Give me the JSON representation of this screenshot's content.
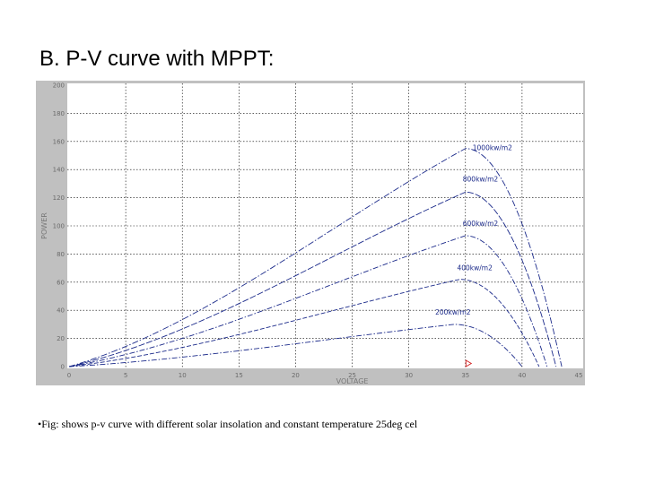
{
  "title": "B.  P-V curve with MPPT:",
  "caption": "•Fig: shows p-v curve with different solar insolation and constant temperature 25deg cel",
  "colors": {
    "curve": "#1b2a8a",
    "marker": "#d22020",
    "frame": "#c0c0c0",
    "grid": "#000000"
  },
  "chart_data": {
    "type": "line",
    "xlabel": "VOLTAGE",
    "ylabel": "POWER",
    "xlim": [
      0,
      45
    ],
    "ylim": [
      0,
      200
    ],
    "grid": true,
    "xticks": [
      0,
      5,
      10,
      15,
      20,
      25,
      30,
      35,
      40,
      45
    ],
    "yticks": [
      0,
      20,
      40,
      60,
      80,
      100,
      120,
      140,
      160,
      180,
      200
    ],
    "series": [
      {
        "name": "1000kw/m2",
        "mpp": [
          35,
          155
        ],
        "voc": 43.5
      },
      {
        "name": "800kw/m2",
        "mpp": [
          35,
          124
        ],
        "voc": 43.0
      },
      {
        "name": "600kw/m2",
        "mpp": [
          35,
          93
        ],
        "voc": 42.2
      },
      {
        "name": "400kw/m2",
        "mpp": [
          34.5,
          62
        ],
        "voc": 41.5
      },
      {
        "name": "200kw/m2",
        "mpp": [
          34,
          30
        ],
        "voc": 40.0
      }
    ],
    "marker": {
      "x": 35.2,
      "y": 0
    }
  }
}
